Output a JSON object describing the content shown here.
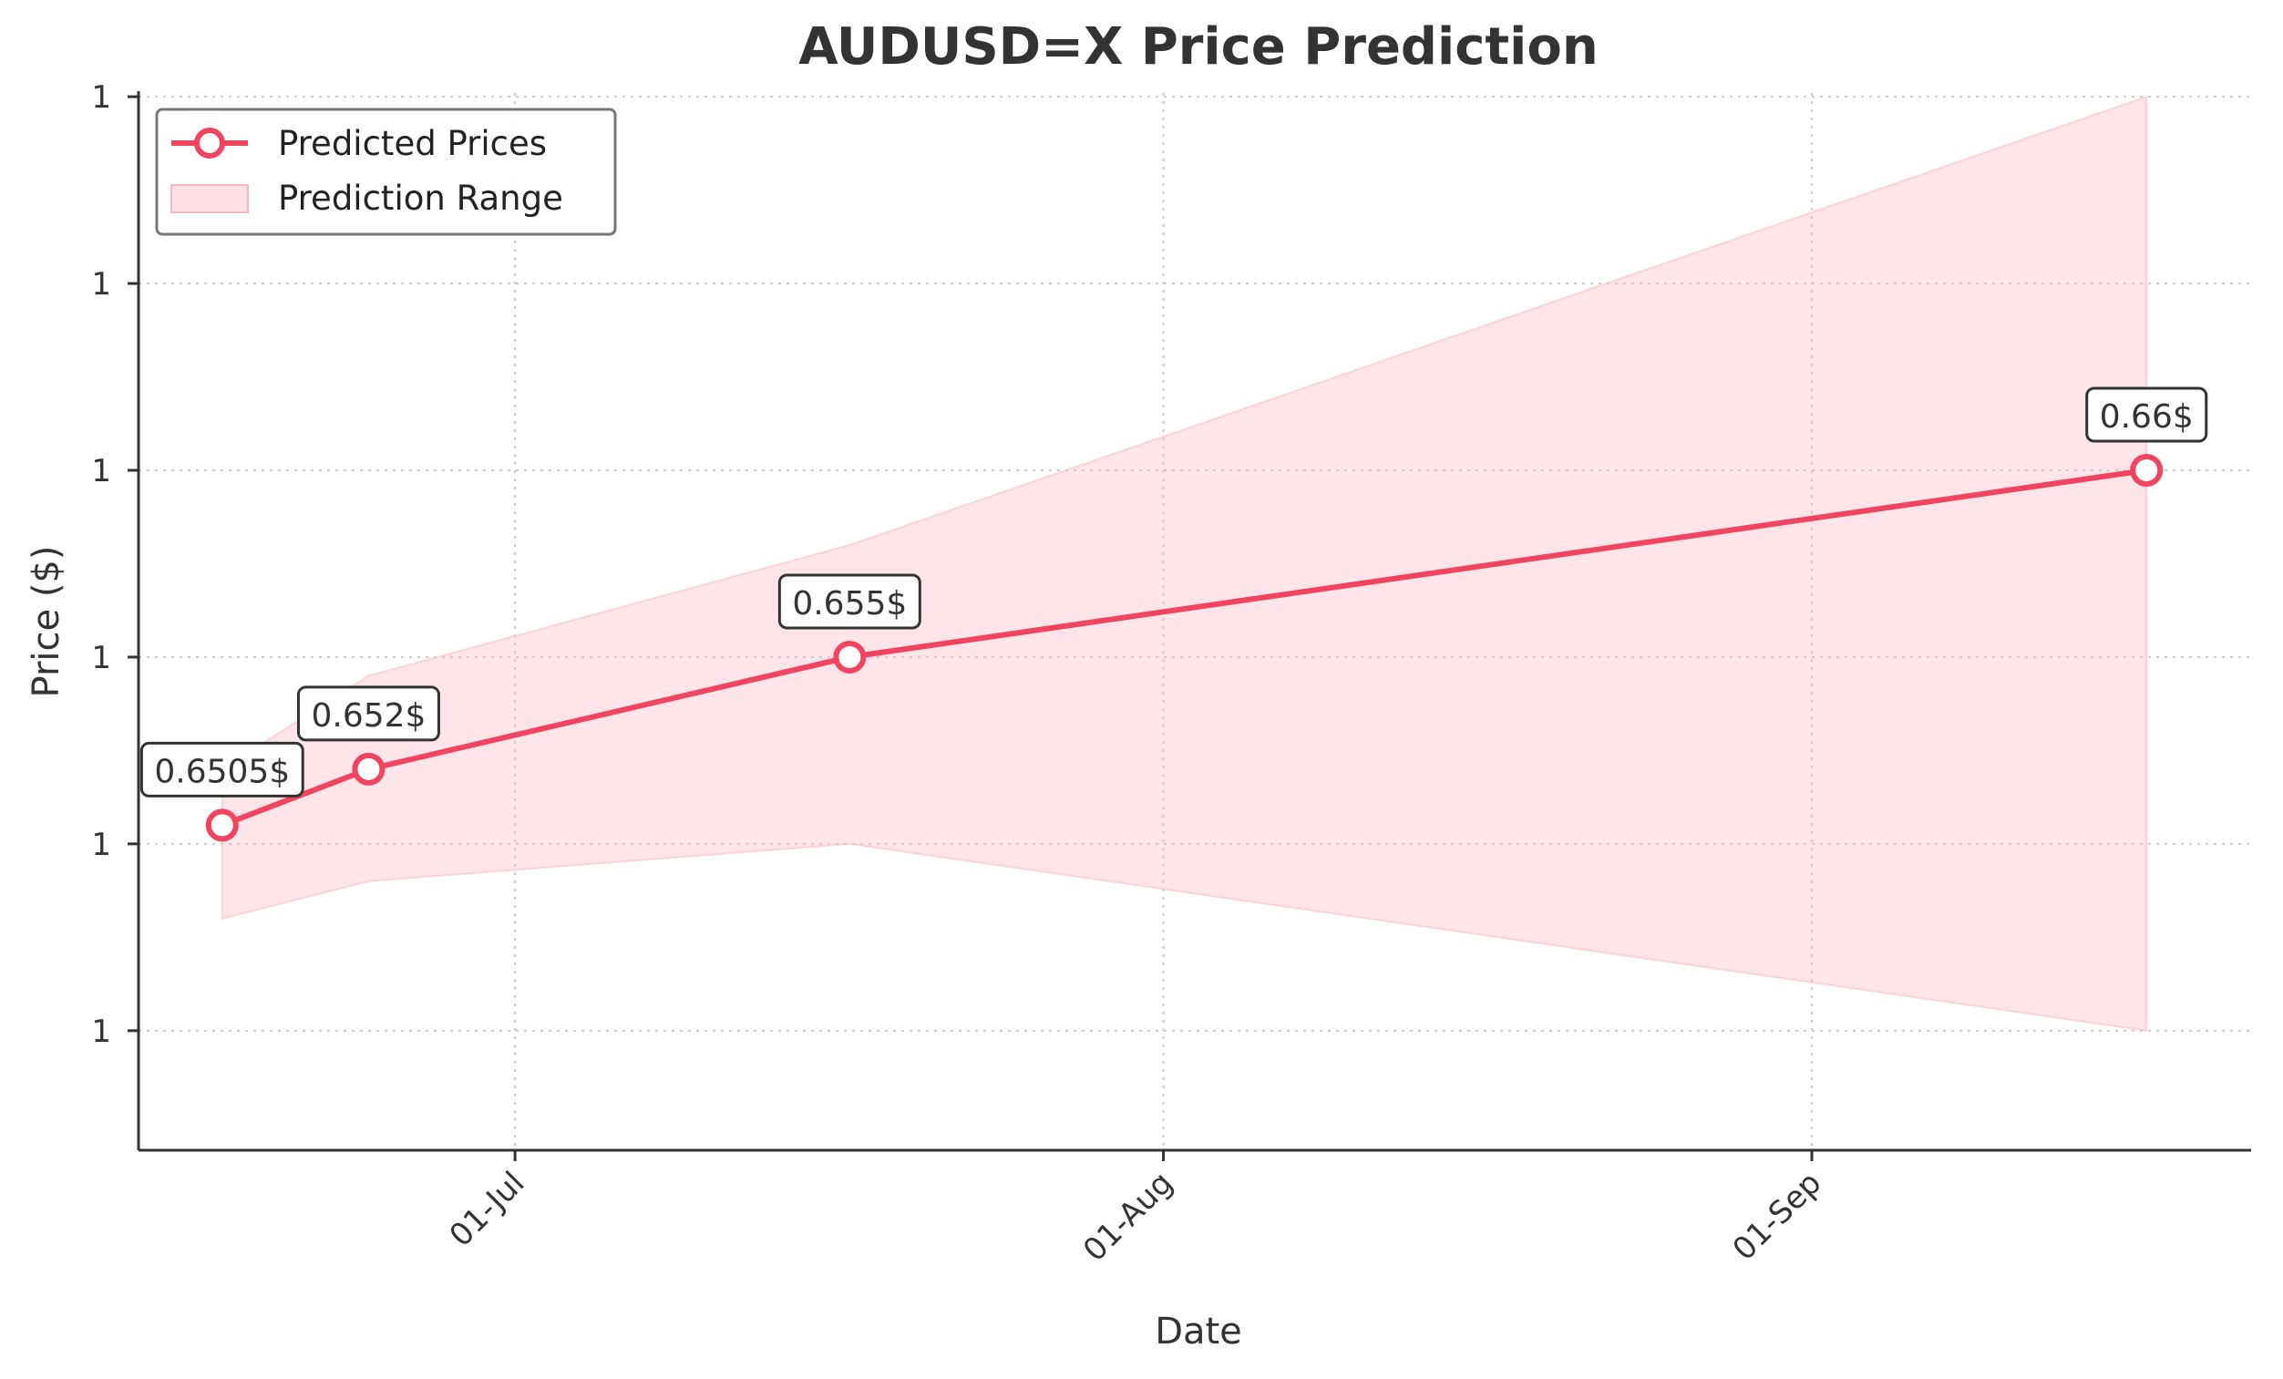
{
  "chart_data": {
    "type": "line",
    "title": "AUDUSD=X Price Prediction",
    "xlabel": "Date",
    "ylabel": "Price ($)",
    "x_axis": {
      "scale": "time",
      "range": [
        "2024-06-13",
        "2024-09-22"
      ],
      "ticks": [
        {
          "date": "2024-07-01",
          "label": "01-Jul"
        },
        {
          "date": "2024-08-01",
          "label": "01-Aug"
        },
        {
          "date": "2024-09-01",
          "label": "01-Sep"
        }
      ]
    },
    "y_axis": {
      "range": [
        0.6418,
        0.6701
      ],
      "ticks": [
        {
          "value": 0.645,
          "label": "1"
        },
        {
          "value": 0.65,
          "label": "1"
        },
        {
          "value": 0.655,
          "label": "1"
        },
        {
          "value": 0.66,
          "label": "1"
        },
        {
          "value": 0.665,
          "label": "1"
        },
        {
          "value": 0.67,
          "label": "1"
        }
      ]
    },
    "grid": true,
    "legend_position": "top-left",
    "series": [
      {
        "name": "Predicted Prices",
        "color": "#f0445f",
        "marker": "hollow-circle",
        "points": [
          {
            "x": "2024-06-17",
            "y": 0.6505,
            "label": "0.6505$"
          },
          {
            "x": "2024-06-24",
            "y": 0.652,
            "label": "0.652$"
          },
          {
            "x": "2024-07-17",
            "y": 0.655,
            "label": "0.655$"
          },
          {
            "x": "2024-09-17",
            "y": 0.66,
            "label": "0.66$"
          }
        ]
      }
    ],
    "bands": [
      {
        "name": "Prediction Range",
        "color": "#ffb3c1",
        "points": [
          {
            "x": "2024-06-17",
            "low": 0.648,
            "high": 0.652
          },
          {
            "x": "2024-06-24",
            "low": 0.649,
            "high": 0.6545
          },
          {
            "x": "2024-07-17",
            "low": 0.65,
            "high": 0.658
          },
          {
            "x": "2024-09-17",
            "low": 0.645,
            "high": 0.67
          }
        ]
      }
    ]
  }
}
